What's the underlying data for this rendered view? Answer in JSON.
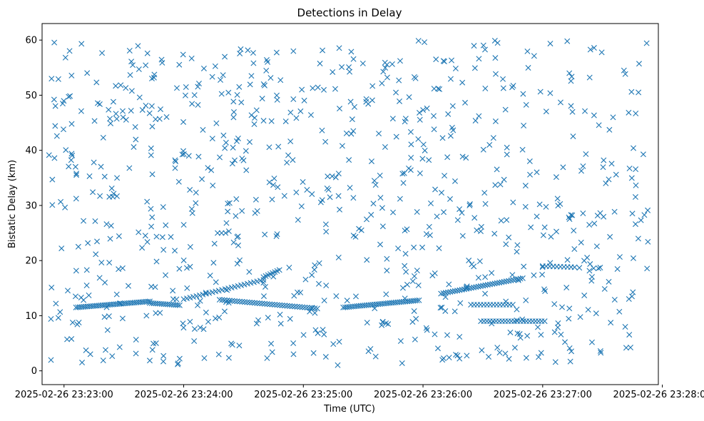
{
  "chart_data": {
    "type": "scatter",
    "title": "Detections in Delay",
    "xlabel": "Time (UTC)",
    "ylabel": "Bistatic Delay (km)",
    "marker": "x",
    "color": "#1f77b4",
    "grid": false,
    "legend": "none",
    "xlim": [
      "2025-02-26 23:22:49",
      "2025-02-26 23:27:58"
    ],
    "ylim": [
      -2.5,
      63
    ],
    "x_ticks": [
      "2025-02-26 23:23:00",
      "2025-02-26 23:24:00",
      "2025-02-26 23:25:00",
      "2025-02-26 23:26:00",
      "2025-02-26 23:27:00",
      "2025-02-26 23:28:00"
    ],
    "y_ticks": [
      0,
      10,
      20,
      30,
      40,
      50,
      60
    ],
    "x_start": "2025-02-26 23:22:52",
    "x_end": "2025-02-26 23:27:53",
    "noise_count": 820,
    "noise_range": [
      1,
      60
    ],
    "tracks": [
      {
        "from": [
          "2025-02-26 23:23:06",
          11.5
        ],
        "to": [
          "2025-02-26 23:23:43",
          12.6
        ],
        "count": 40
      },
      {
        "from": [
          "2025-02-26 23:23:43",
          12.3
        ],
        "to": [
          "2025-02-26 23:23:58",
          11.9
        ],
        "count": 16
      },
      {
        "from": [
          "2025-02-26 23:24:00",
          13.0
        ],
        "to": [
          "2025-02-26 23:24:40",
          16.5
        ],
        "count": 26
      },
      {
        "from": [
          "2025-02-26 23:24:40",
          17.0
        ],
        "to": [
          "2025-02-26 23:24:48",
          18.3
        ],
        "count": 8
      },
      {
        "from": [
          "2025-02-26 23:24:18",
          12.9
        ],
        "to": [
          "2025-02-26 23:25:07",
          11.3
        ],
        "count": 40
      },
      {
        "from": [
          "2025-02-26 23:25:20",
          11.5
        ],
        "to": [
          "2025-02-26 23:25:58",
          12.8
        ],
        "count": 40
      },
      {
        "from": [
          "2025-02-26 23:26:09",
          14.0
        ],
        "to": [
          "2025-02-26 23:26:50",
          16.8
        ],
        "count": 36
      },
      {
        "from": [
          "2025-02-26 23:26:24",
          12.0
        ],
        "to": [
          "2025-02-26 23:26:45",
          12.0
        ],
        "count": 14
      },
      {
        "from": [
          "2025-02-26 23:26:29",
          9.0
        ],
        "to": [
          "2025-02-26 23:27:01",
          9.0
        ],
        "count": 22
      },
      {
        "from": [
          "2025-02-26 23:27:00",
          19.0
        ],
        "to": [
          "2025-02-26 23:27:16",
          18.8
        ],
        "count": 10
      },
      {
        "from": [
          "2025-02-26 23:24:17",
          25.0
        ],
        "to": [
          "2025-02-26 23:24:21",
          25.0
        ],
        "count": 3
      }
    ]
  }
}
